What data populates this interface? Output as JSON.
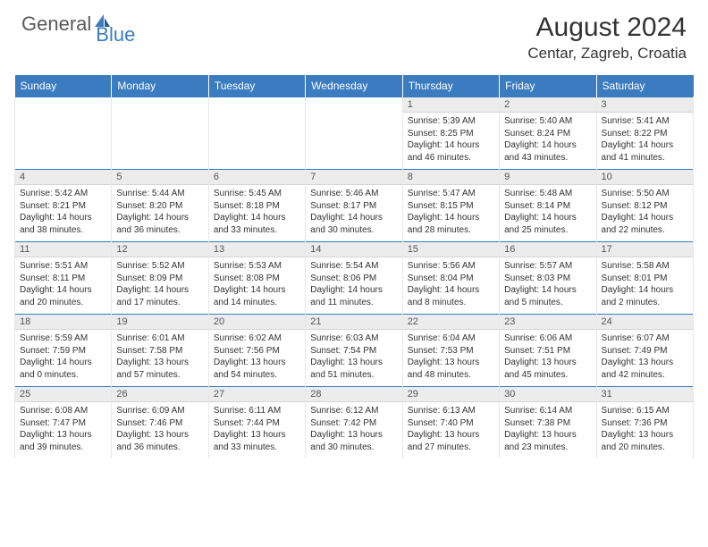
{
  "logo": {
    "general": "General",
    "blue": "Blue"
  },
  "title": "August 2024",
  "location": "Centar, Zagreb, Croatia",
  "colors": {
    "header_bg": "#3b7bbf",
    "header_text": "#ffffff",
    "daynum_bg": "#ececec",
    "text": "#333333",
    "logo_gray": "#5a5a5a",
    "logo_blue": "#3b7bbf"
  },
  "weekdays": [
    "Sunday",
    "Monday",
    "Tuesday",
    "Wednesday",
    "Thursday",
    "Friday",
    "Saturday"
  ],
  "weeks": [
    [
      null,
      null,
      null,
      null,
      {
        "n": "1",
        "sr": "5:39 AM",
        "ss": "8:25 PM",
        "dh": "14",
        "dm": "46"
      },
      {
        "n": "2",
        "sr": "5:40 AM",
        "ss": "8:24 PM",
        "dh": "14",
        "dm": "43"
      },
      {
        "n": "3",
        "sr": "5:41 AM",
        "ss": "8:22 PM",
        "dh": "14",
        "dm": "41"
      }
    ],
    [
      {
        "n": "4",
        "sr": "5:42 AM",
        "ss": "8:21 PM",
        "dh": "14",
        "dm": "38"
      },
      {
        "n": "5",
        "sr": "5:44 AM",
        "ss": "8:20 PM",
        "dh": "14",
        "dm": "36"
      },
      {
        "n": "6",
        "sr": "5:45 AM",
        "ss": "8:18 PM",
        "dh": "14",
        "dm": "33"
      },
      {
        "n": "7",
        "sr": "5:46 AM",
        "ss": "8:17 PM",
        "dh": "14",
        "dm": "30"
      },
      {
        "n": "8",
        "sr": "5:47 AM",
        "ss": "8:15 PM",
        "dh": "14",
        "dm": "28"
      },
      {
        "n": "9",
        "sr": "5:48 AM",
        "ss": "8:14 PM",
        "dh": "14",
        "dm": "25"
      },
      {
        "n": "10",
        "sr": "5:50 AM",
        "ss": "8:12 PM",
        "dh": "14",
        "dm": "22"
      }
    ],
    [
      {
        "n": "11",
        "sr": "5:51 AM",
        "ss": "8:11 PM",
        "dh": "14",
        "dm": "20"
      },
      {
        "n": "12",
        "sr": "5:52 AM",
        "ss": "8:09 PM",
        "dh": "14",
        "dm": "17"
      },
      {
        "n": "13",
        "sr": "5:53 AM",
        "ss": "8:08 PM",
        "dh": "14",
        "dm": "14"
      },
      {
        "n": "14",
        "sr": "5:54 AM",
        "ss": "8:06 PM",
        "dh": "14",
        "dm": "11"
      },
      {
        "n": "15",
        "sr": "5:56 AM",
        "ss": "8:04 PM",
        "dh": "14",
        "dm": "8"
      },
      {
        "n": "16",
        "sr": "5:57 AM",
        "ss": "8:03 PM",
        "dh": "14",
        "dm": "5"
      },
      {
        "n": "17",
        "sr": "5:58 AM",
        "ss": "8:01 PM",
        "dh": "14",
        "dm": "2"
      }
    ],
    [
      {
        "n": "18",
        "sr": "5:59 AM",
        "ss": "7:59 PM",
        "dh": "14",
        "dm": "0"
      },
      {
        "n": "19",
        "sr": "6:01 AM",
        "ss": "7:58 PM",
        "dh": "13",
        "dm": "57"
      },
      {
        "n": "20",
        "sr": "6:02 AM",
        "ss": "7:56 PM",
        "dh": "13",
        "dm": "54"
      },
      {
        "n": "21",
        "sr": "6:03 AM",
        "ss": "7:54 PM",
        "dh": "13",
        "dm": "51"
      },
      {
        "n": "22",
        "sr": "6:04 AM",
        "ss": "7:53 PM",
        "dh": "13",
        "dm": "48"
      },
      {
        "n": "23",
        "sr": "6:06 AM",
        "ss": "7:51 PM",
        "dh": "13",
        "dm": "45"
      },
      {
        "n": "24",
        "sr": "6:07 AM",
        "ss": "7:49 PM",
        "dh": "13",
        "dm": "42"
      }
    ],
    [
      {
        "n": "25",
        "sr": "6:08 AM",
        "ss": "7:47 PM",
        "dh": "13",
        "dm": "39"
      },
      {
        "n": "26",
        "sr": "6:09 AM",
        "ss": "7:46 PM",
        "dh": "13",
        "dm": "36"
      },
      {
        "n": "27",
        "sr": "6:11 AM",
        "ss": "7:44 PM",
        "dh": "13",
        "dm": "33"
      },
      {
        "n": "28",
        "sr": "6:12 AM",
        "ss": "7:42 PM",
        "dh": "13",
        "dm": "30"
      },
      {
        "n": "29",
        "sr": "6:13 AM",
        "ss": "7:40 PM",
        "dh": "13",
        "dm": "27"
      },
      {
        "n": "30",
        "sr": "6:14 AM",
        "ss": "7:38 PM",
        "dh": "13",
        "dm": "23"
      },
      {
        "n": "31",
        "sr": "6:15 AM",
        "ss": "7:36 PM",
        "dh": "13",
        "dm": "20"
      }
    ]
  ]
}
